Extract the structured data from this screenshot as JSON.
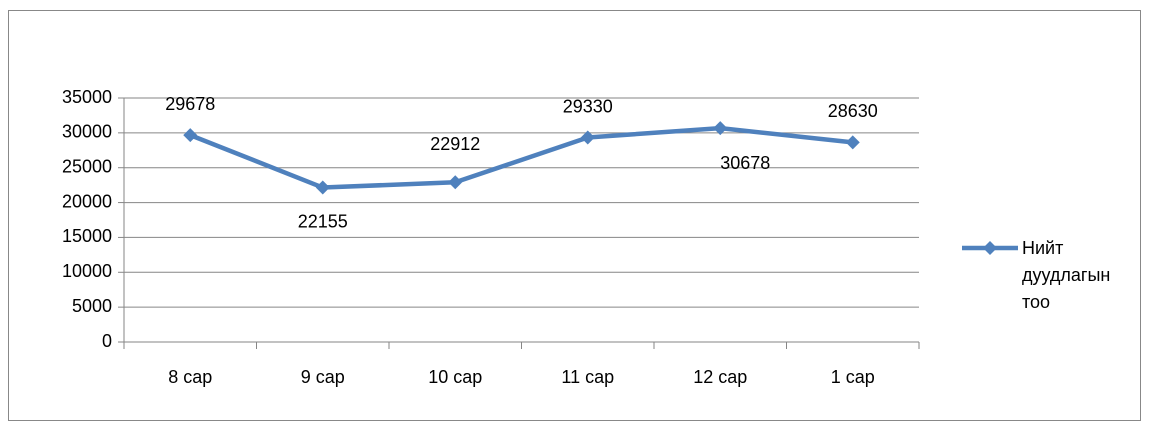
{
  "chart_data": {
    "type": "line",
    "categories": [
      "8 сар",
      "9 сар",
      "10 сар",
      "11 сар",
      "12 сар",
      "1 сар"
    ],
    "series": [
      {
        "name": "Нийт дуудлагын тоо",
        "color": "#4f81bd",
        "values": [
          29678,
          22155,
          22912,
          29330,
          30678,
          28630
        ]
      }
    ],
    "ylim": [
      0,
      35000
    ],
    "yticks": [
      0,
      5000,
      10000,
      15000,
      20000,
      25000,
      30000,
      35000
    ],
    "grid": true,
    "legend": "right"
  }
}
